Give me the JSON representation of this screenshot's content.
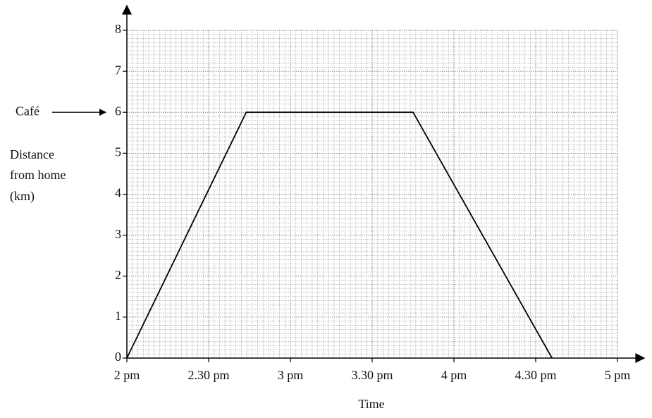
{
  "chart_data": {
    "type": "line",
    "x": [
      14,
      14.73,
      15.75,
      16.6
    ],
    "values": [
      0,
      6,
      6,
      0
    ],
    "color": "#000000",
    "xlabel": "Time",
    "ylabel": [
      "Distance",
      "from home",
      "(km)"
    ],
    "annotation": "Café",
    "annotation_value": 6,
    "xlim": [
      14,
      17
    ],
    "xticks": [
      {
        "value": 14,
        "label": "2 pm"
      },
      {
        "value": 14.5,
        "label": "2.30 pm"
      },
      {
        "value": 15,
        "label": "3 pm"
      },
      {
        "value": 15.5,
        "label": "3.30 pm"
      },
      {
        "value": 16,
        "label": "4 pm"
      },
      {
        "value": 16.5,
        "label": "4.30 pm"
      },
      {
        "value": 17,
        "label": "5 pm"
      }
    ],
    "ylim": [
      0,
      8
    ],
    "yticks": [
      0,
      1,
      2,
      3,
      4,
      5,
      6,
      7,
      8
    ],
    "grid": true
  }
}
